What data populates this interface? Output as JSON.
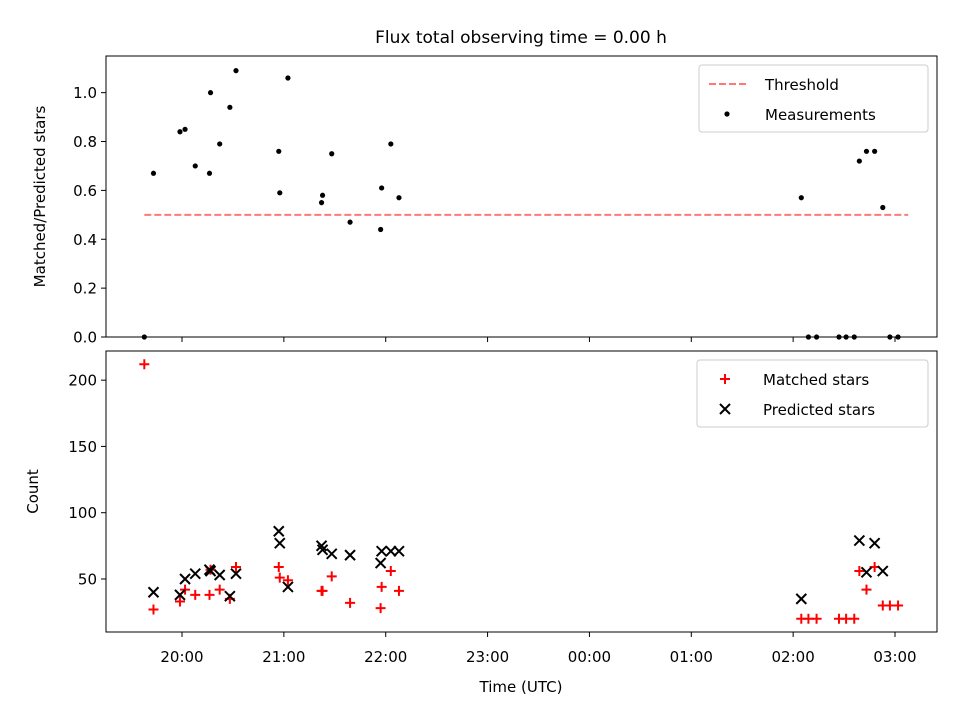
{
  "title": "Flux total observing time = 0.00 h",
  "x_axis_label": "Time (UTC)",
  "x_tick_labels": [
    "20:00",
    "21:00",
    "22:00",
    "23:00",
    "00:00",
    "01:00",
    "02:00",
    "03:00"
  ],
  "chart_data": [
    {
      "type": "scatter",
      "ylabel": "Matched/Predicted stars",
      "ylim": [
        0,
        1.15
      ],
      "yticks": [
        "0.0",
        "0.2",
        "0.4",
        "0.6",
        "0.8",
        "1.0"
      ],
      "ytick_values": [
        0,
        0.2,
        0.4,
        0.6,
        0.8,
        1.0
      ],
      "legend_position": "upper right",
      "threshold": {
        "name": "Threshold",
        "value": 0.5,
        "x_start": 19.63,
        "x_end": 27.13,
        "color": "#ff7777",
        "style": "dashed"
      },
      "series": [
        {
          "name": "Measurements",
          "color": "#000000",
          "marker": "dot",
          "x": [
            19.63,
            19.72,
            19.98,
            20.03,
            20.13,
            20.27,
            20.28,
            20.37,
            20.47,
            20.53,
            20.95,
            20.96,
            21.04,
            21.37,
            21.38,
            21.47,
            21.65,
            21.95,
            21.96,
            22.05,
            22.13,
            26.08,
            26.15,
            26.23,
            26.45,
            26.52,
            26.6,
            26.65,
            26.72,
            26.8,
            26.88,
            26.95,
            27.03
          ],
          "y": [
            0.0,
            0.67,
            0.84,
            0.85,
            0.7,
            0.67,
            1.0,
            0.79,
            0.94,
            1.09,
            0.76,
            0.59,
            1.06,
            0.55,
            0.58,
            0.75,
            0.47,
            0.44,
            0.61,
            0.79,
            0.57,
            0.57,
            0.0,
            0.0,
            0.0,
            0.0,
            0.0,
            0.72,
            0.76,
            0.76,
            0.53,
            0.0,
            0.0
          ]
        }
      ]
    },
    {
      "type": "scatter",
      "ylabel": "Count",
      "ylim": [
        10,
        222
      ],
      "yticks": [
        "50",
        "100",
        "150",
        "200"
      ],
      "ytick_values": [
        50,
        100,
        150,
        200
      ],
      "legend_position": "upper right",
      "series": [
        {
          "name": "Matched stars",
          "color": "#ff0000",
          "marker": "plus",
          "x": [
            19.63,
            19.72,
            19.98,
            20.03,
            20.13,
            20.27,
            20.28,
            20.37,
            20.47,
            20.53,
            20.95,
            20.96,
            21.04,
            21.37,
            21.38,
            21.47,
            21.65,
            21.95,
            21.96,
            22.05,
            22.13,
            26.08,
            26.15,
            26.23,
            26.45,
            26.52,
            26.6,
            26.65,
            26.72,
            26.8,
            26.88,
            26.95,
            27.03
          ],
          "y": [
            212,
            27,
            33,
            42,
            38,
            38,
            57,
            42,
            35,
            59,
            59,
            51,
            49,
            41,
            41,
            52,
            32,
            28,
            44,
            56,
            41,
            20,
            20,
            20,
            20,
            20,
            20,
            56,
            42,
            59,
            30,
            30,
            30
          ]
        },
        {
          "name": "Predicted stars",
          "color": "#000000",
          "marker": "x",
          "x": [
            19.72,
            19.98,
            20.03,
            20.13,
            20.27,
            20.28,
            20.37,
            20.47,
            20.53,
            20.95,
            20.96,
            21.04,
            21.37,
            21.38,
            21.47,
            21.65,
            21.95,
            21.96,
            22.05,
            22.13,
            26.08,
            26.65,
            26.72,
            26.8,
            26.88
          ],
          "y": [
            40,
            38,
            50,
            54,
            57,
            56,
            53,
            37,
            54,
            86,
            77,
            44,
            75,
            72,
            69,
            68,
            62,
            71,
            71,
            71,
            35,
            79,
            55,
            77,
            56
          ]
        }
      ]
    }
  ]
}
